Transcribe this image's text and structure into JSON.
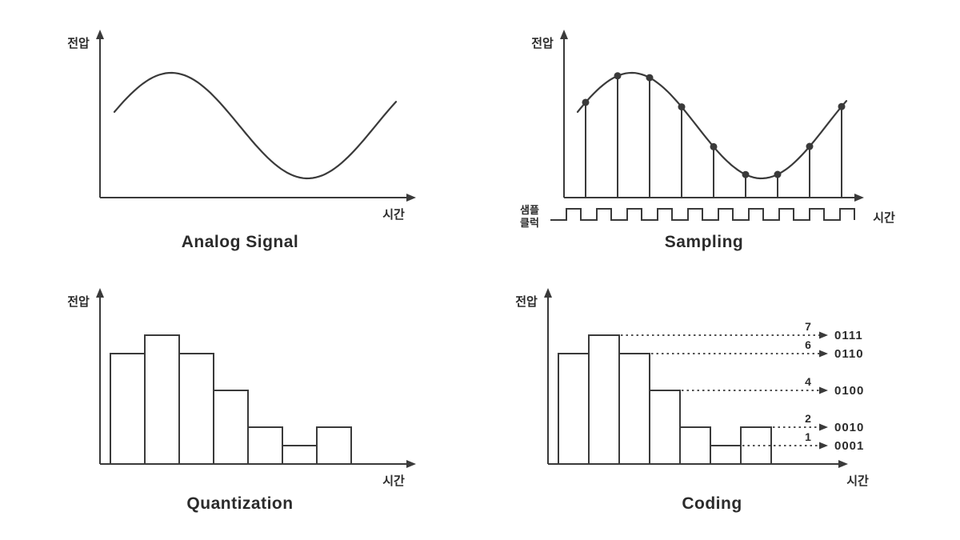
{
  "colors": {
    "stroke": "#3a3a3a",
    "background": "#ffffff"
  },
  "panels": {
    "analog": {
      "title": "Analog Signal",
      "y_label": "전압",
      "x_label": "시간"
    },
    "sampling": {
      "title": "Sampling",
      "y_label": "전압",
      "x_label": "시간",
      "clock_label": [
        "샘플",
        "클럭"
      ],
      "num_samples": 9,
      "num_clock_pulses": 10
    },
    "quantization": {
      "title": "Quantization",
      "y_label": "전압",
      "x_label": "시간",
      "bar_levels": [
        6,
        7,
        6,
        4,
        2,
        1,
        2
      ]
    },
    "coding": {
      "title": "Coding",
      "y_label": "전압",
      "x_label": "시간",
      "bar_levels": [
        6,
        7,
        6,
        4,
        2,
        1,
        2
      ],
      "codes": [
        {
          "level": 7,
          "code": "0111"
        },
        {
          "level": 6,
          "code": "0110"
        },
        {
          "level": 4,
          "code": "0100"
        },
        {
          "level": 2,
          "code": "0010"
        },
        {
          "level": 1,
          "code": "0001"
        }
      ]
    }
  }
}
